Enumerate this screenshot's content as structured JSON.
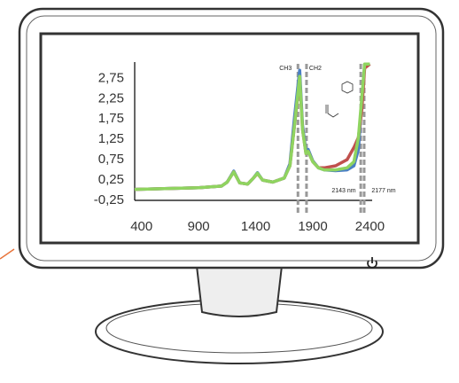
{
  "chart_data": {
    "type": "line",
    "x": [
      340,
      600,
      900,
      1100,
      1150,
      1208,
      1260,
      1330,
      1380,
      1415,
      1460,
      1550,
      1650,
      1700,
      1740,
      1785,
      1810,
      1840,
      1860,
      1900,
      1950,
      2000,
      2100,
      2200,
      2260,
      2300,
      2330,
      2354,
      2400
    ],
    "series": [
      {
        "color": "#4a7fc4",
        "values": [
          0.02,
          0.04,
          0.06,
          0.1,
          0.2,
          0.47,
          0.18,
          0.15,
          0.3,
          0.43,
          0.25,
          0.2,
          0.3,
          0.65,
          1.8,
          2.95,
          1.6,
          0.95,
          1.0,
          0.72,
          0.55,
          0.5,
          0.48,
          0.5,
          0.6,
          1.0,
          2.2,
          3.05,
          3.1
        ]
      },
      {
        "color": "#c0504d",
        "values": [
          0.02,
          0.04,
          0.06,
          0.1,
          0.2,
          0.45,
          0.18,
          0.15,
          0.3,
          0.41,
          0.25,
          0.2,
          0.3,
          0.6,
          1.6,
          2.75,
          1.5,
          0.9,
          0.95,
          0.7,
          0.55,
          0.55,
          0.6,
          0.75,
          1.05,
          1.3,
          2.0,
          3.0,
          3.1
        ]
      },
      {
        "color": "#8fd460",
        "values": [
          0.02,
          0.04,
          0.06,
          0.1,
          0.2,
          0.45,
          0.18,
          0.15,
          0.3,
          0.42,
          0.25,
          0.2,
          0.3,
          0.6,
          1.6,
          2.8,
          1.5,
          0.9,
          0.95,
          0.7,
          0.55,
          0.5,
          0.5,
          0.55,
          0.7,
          1.3,
          2.3,
          3.1,
          3.1
        ]
      }
    ],
    "xlim": [
      340,
      2420
    ],
    "xticks": [
      400,
      900,
      1400,
      1900,
      2400
    ],
    "ylim": [
      -0.25,
      3.15
    ],
    "yticks": [
      {
        "value": -0.25,
        "label": "-0,25"
      },
      {
        "value": 0.25,
        "label": "0,25"
      },
      {
        "value": 0.75,
        "label": "0,75"
      },
      {
        "value": 1.25,
        "label": "1,25"
      },
      {
        "value": 1.75,
        "label": "1,75"
      },
      {
        "value": 2.25,
        "label": "2,25"
      },
      {
        "value": 2.75,
        "label": "2,75"
      }
    ],
    "reference_lines": [
      1770,
      1845,
      2320,
      2350
    ],
    "annotations": [
      "CH3",
      "CH2",
      "2143 nm",
      "2177 nm"
    ]
  }
}
